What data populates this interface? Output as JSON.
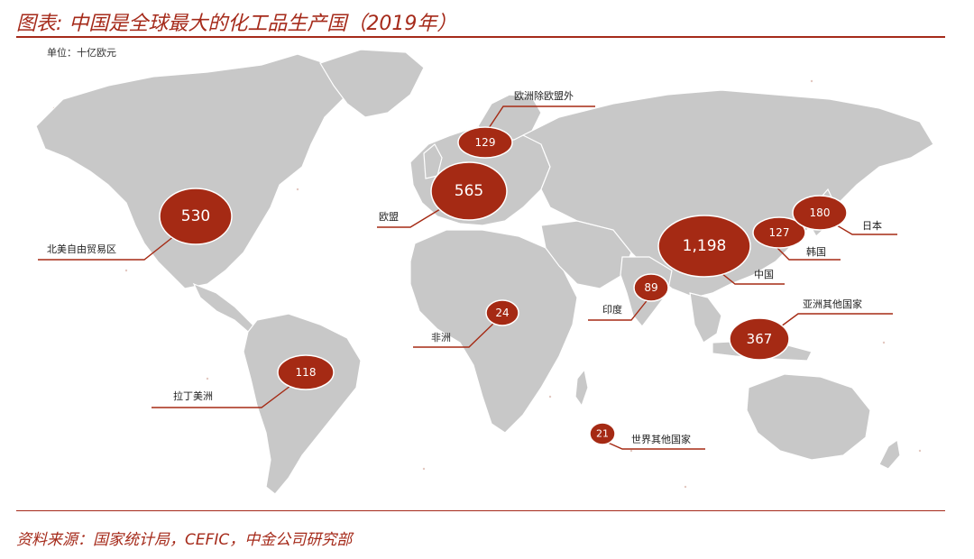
{
  "title": "图表: 中国是全球最大的化工品生产国（2019年）",
  "unit": "单位：十亿欧元",
  "source": "资料来源：国家统计局，CEFIC，中金公司研究部",
  "colors": {
    "accent": "#a52a14",
    "land": "#c8c8c8"
  },
  "regions": [
    {
      "key": "nafta",
      "label": "北美自由贸易区",
      "value": "530"
    },
    {
      "key": "eu",
      "label": "欧盟",
      "value": "565"
    },
    {
      "key": "europe_non_eu",
      "label": "欧洲除欧盟外",
      "value": "129"
    },
    {
      "key": "china",
      "label": "中国",
      "value": "1,198"
    },
    {
      "key": "korea",
      "label": "韩国",
      "value": "127"
    },
    {
      "key": "japan",
      "label": "日本",
      "value": "180"
    },
    {
      "key": "india",
      "label": "印度",
      "value": "89"
    },
    {
      "key": "africa",
      "label": "非洲",
      "value": "24"
    },
    {
      "key": "latam",
      "label": "拉丁美洲",
      "value": "118"
    },
    {
      "key": "other_asia",
      "label": "亚洲其他国家",
      "value": "367"
    },
    {
      "key": "rest_world",
      "label": "世界其他国家",
      "value": "21"
    }
  ]
}
